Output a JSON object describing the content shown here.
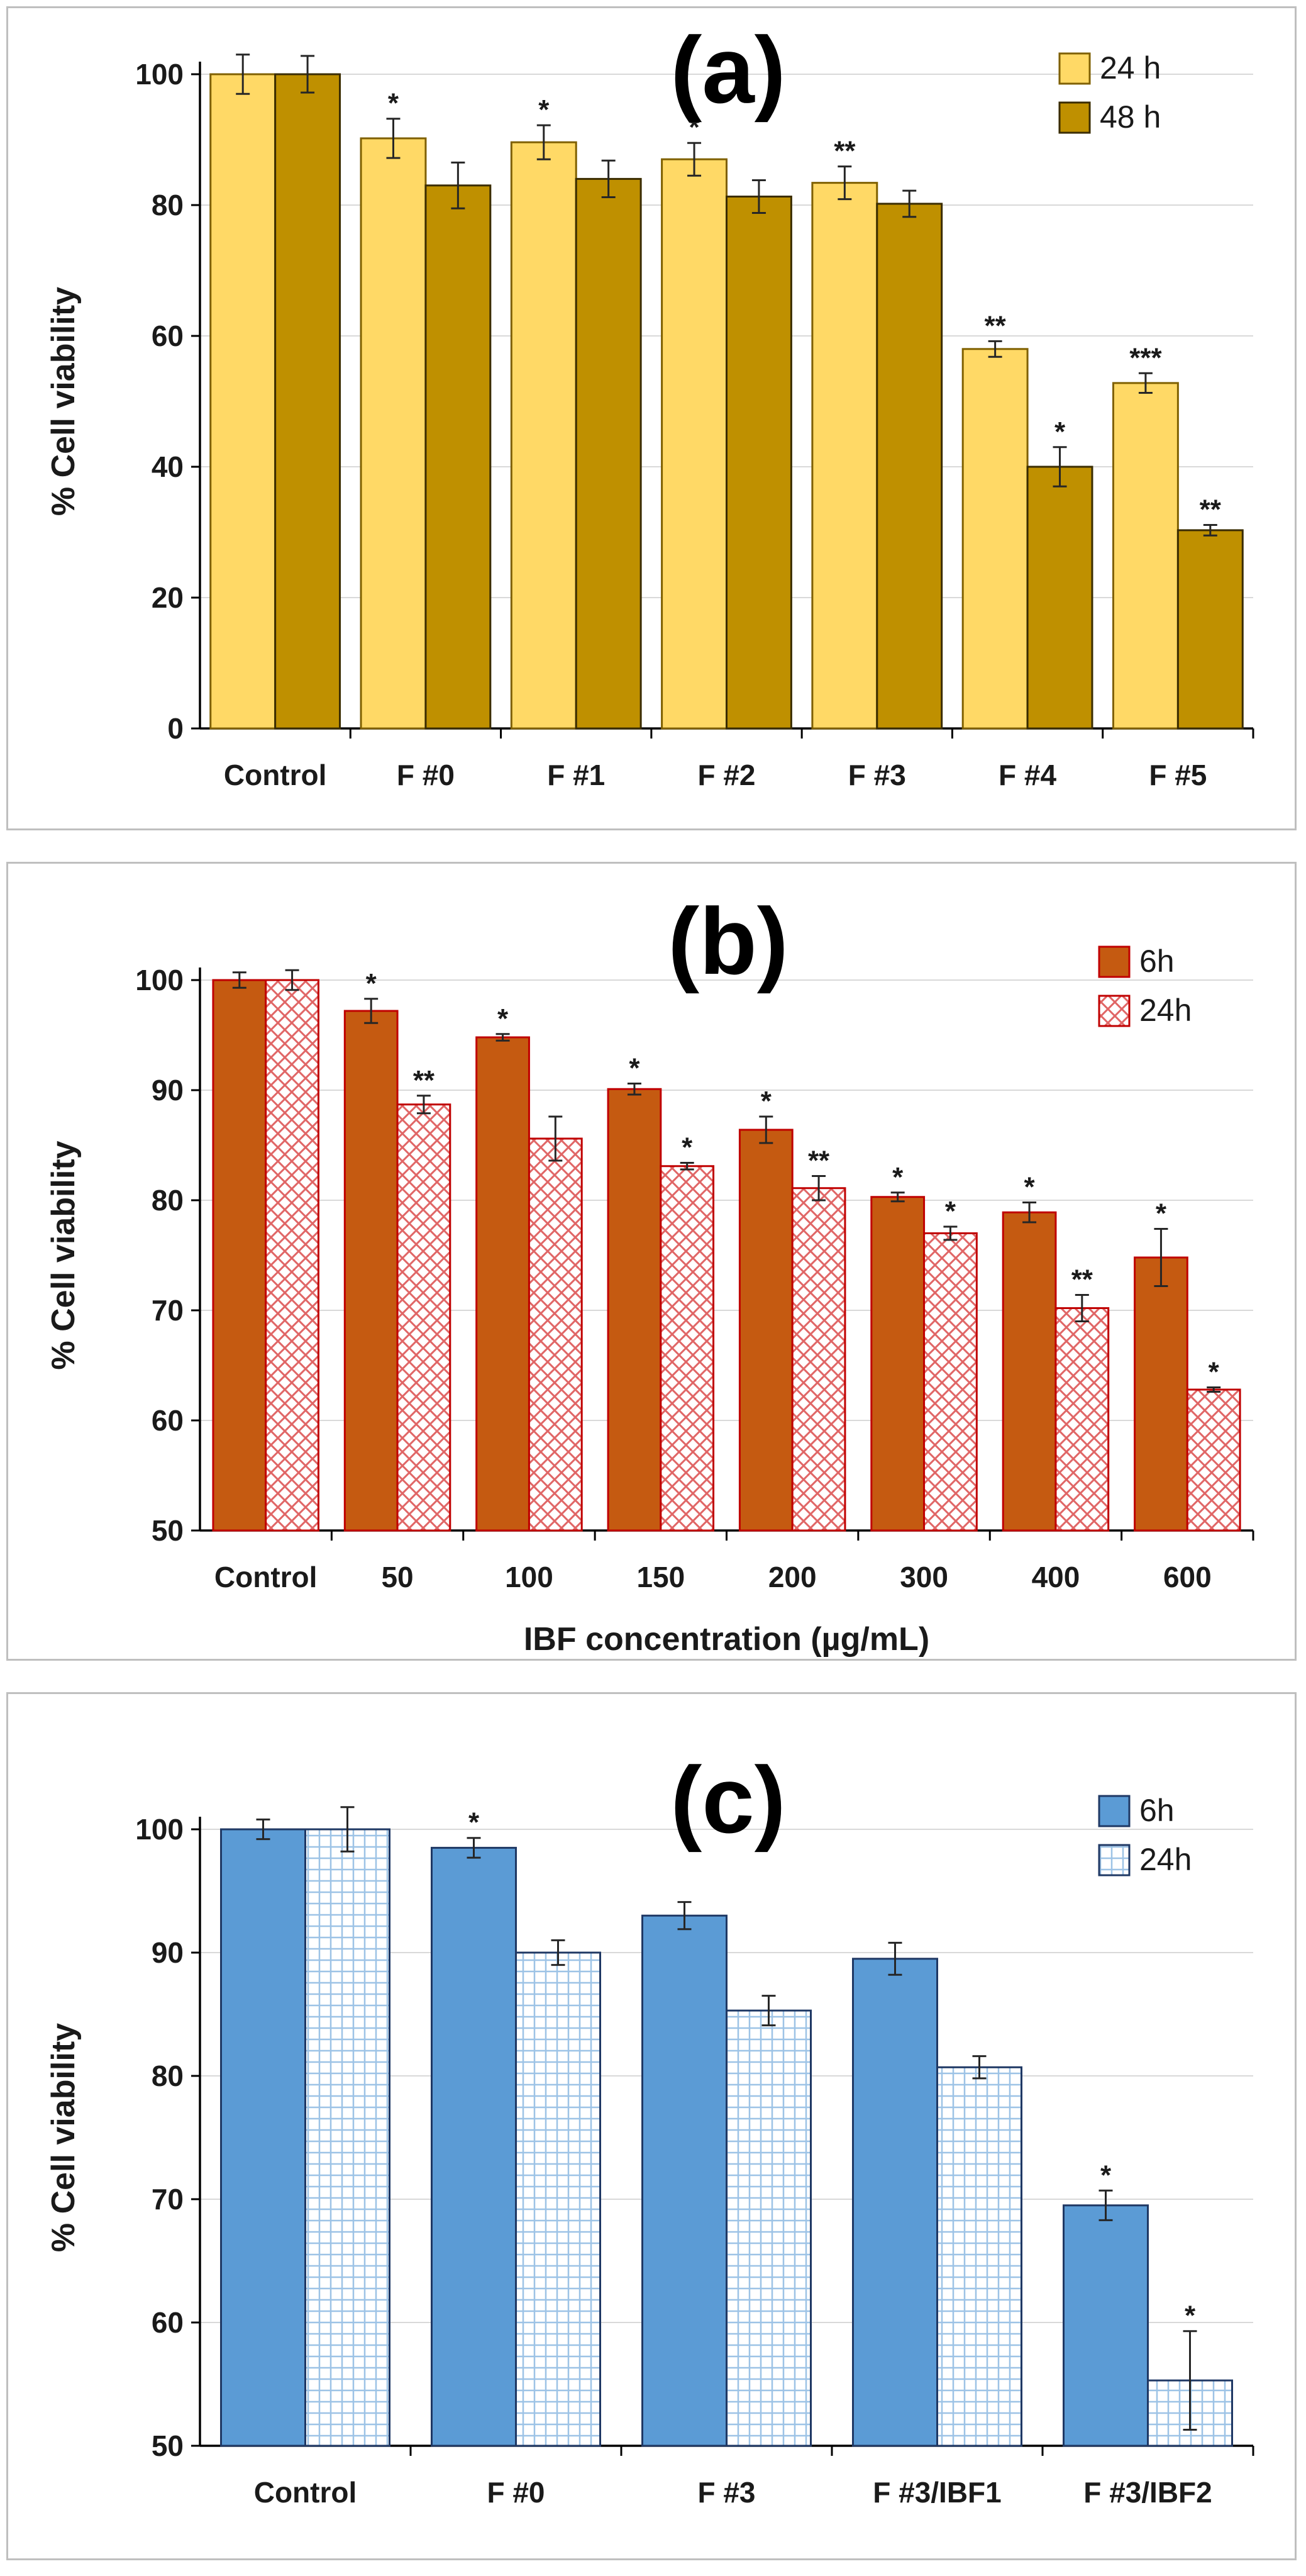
{
  "chart_data": [
    {
      "type": "bar",
      "panel_label": "(a)",
      "title": "",
      "xlabel": "",
      "ylabel": "% Cell viability",
      "ylim": [
        0,
        100
      ],
      "yticks": [
        0,
        20,
        40,
        60,
        80,
        100
      ],
      "grid": true,
      "legend_position": "top-right",
      "categories": [
        "Control",
        "F #0",
        "F #1",
        "F #2",
        "F #3",
        "F #4",
        "F #5"
      ],
      "series": [
        {
          "name": "24 h",
          "color": "#ffd966",
          "edge": "#7f6000",
          "pattern": "solid",
          "values": [
            100,
            90.2,
            89.6,
            87,
            83.4,
            58,
            52.8
          ],
          "errors": [
            3,
            3,
            2.6,
            2.5,
            2.5,
            1.2,
            1.5
          ],
          "sig": [
            "",
            "*",
            "*",
            "*",
            "**",
            "**",
            "***"
          ]
        },
        {
          "name": "48 h",
          "color": "#bf9000",
          "edge": "#3a2c00",
          "pattern": "solid",
          "values": [
            100,
            83,
            84,
            81.3,
            80.2,
            40,
            30.3
          ],
          "errors": [
            2.8,
            3.5,
            2.8,
            2.5,
            2,
            3,
            0.8
          ],
          "sig": [
            "",
            "",
            "",
            "",
            "",
            "*",
            "**"
          ]
        }
      ]
    },
    {
      "type": "bar",
      "panel_label": "(b)",
      "title": "",
      "xlabel": "IBF concentration (µg/mL)",
      "ylabel": "% Cell viability",
      "ylim": [
        50,
        100
      ],
      "yticks": [
        50,
        60,
        70,
        80,
        90,
        100
      ],
      "grid": true,
      "legend_position": "top-right",
      "categories": [
        "Control",
        "50",
        "100",
        "150",
        "200",
        "300",
        "400",
        "600"
      ],
      "series": [
        {
          "name": "6h",
          "color": "#c55a11",
          "edge": "#c00000",
          "pattern": "solid",
          "values": [
            100,
            97.2,
            94.8,
            90.1,
            86.4,
            80.3,
            78.9,
            74.8
          ],
          "errors": [
            0.7,
            1.1,
            0.3,
            0.5,
            1.2,
            0.4,
            0.9,
            2.6
          ],
          "sig": [
            "",
            "*",
            "*",
            "*",
            "*",
            "*",
            "*",
            "*"
          ]
        },
        {
          "name": "24h",
          "color": "#ffffff",
          "edge": "#c00000",
          "pattern": "crosshatch-red",
          "values": [
            100,
            88.7,
            85.6,
            83.1,
            81.1,
            77,
            70.2,
            62.8
          ],
          "errors": [
            0.9,
            0.8,
            2,
            0.3,
            1.1,
            0.6,
            1.2,
            0.2
          ],
          "sig": [
            "",
            "**",
            "",
            "*",
            "**",
            "*",
            "**",
            "*"
          ]
        }
      ]
    },
    {
      "type": "bar",
      "panel_label": "(c)",
      "title": "",
      "xlabel": "",
      "ylabel": "% Cell viability",
      "ylim": [
        50,
        100
      ],
      "yticks": [
        50,
        60,
        70,
        80,
        90,
        100
      ],
      "grid": true,
      "legend_position": "top-right",
      "categories": [
        "Control",
        "F #0",
        "F #3",
        "F #3/IBF1",
        "F #3/IBF2"
      ],
      "series": [
        {
          "name": "6h",
          "color": "#5b9bd5",
          "edge": "#1f3864",
          "pattern": "solid",
          "values": [
            100,
            98.5,
            93,
            89.5,
            69.5
          ],
          "errors": [
            0.8,
            0.8,
            1.1,
            1.3,
            1.2
          ],
          "sig": [
            "",
            "*",
            "",
            "",
            "*"
          ]
        },
        {
          "name": "24h",
          "color": "#ffffff",
          "edge": "#1f3864",
          "pattern": "grid-blue",
          "values": [
            100,
            90,
            85.3,
            80.7,
            55.3
          ],
          "errors": [
            1.8,
            1,
            1.2,
            0.9,
            4
          ],
          "sig": [
            "",
            "",
            "",
            "",
            "*"
          ]
        }
      ]
    }
  ]
}
